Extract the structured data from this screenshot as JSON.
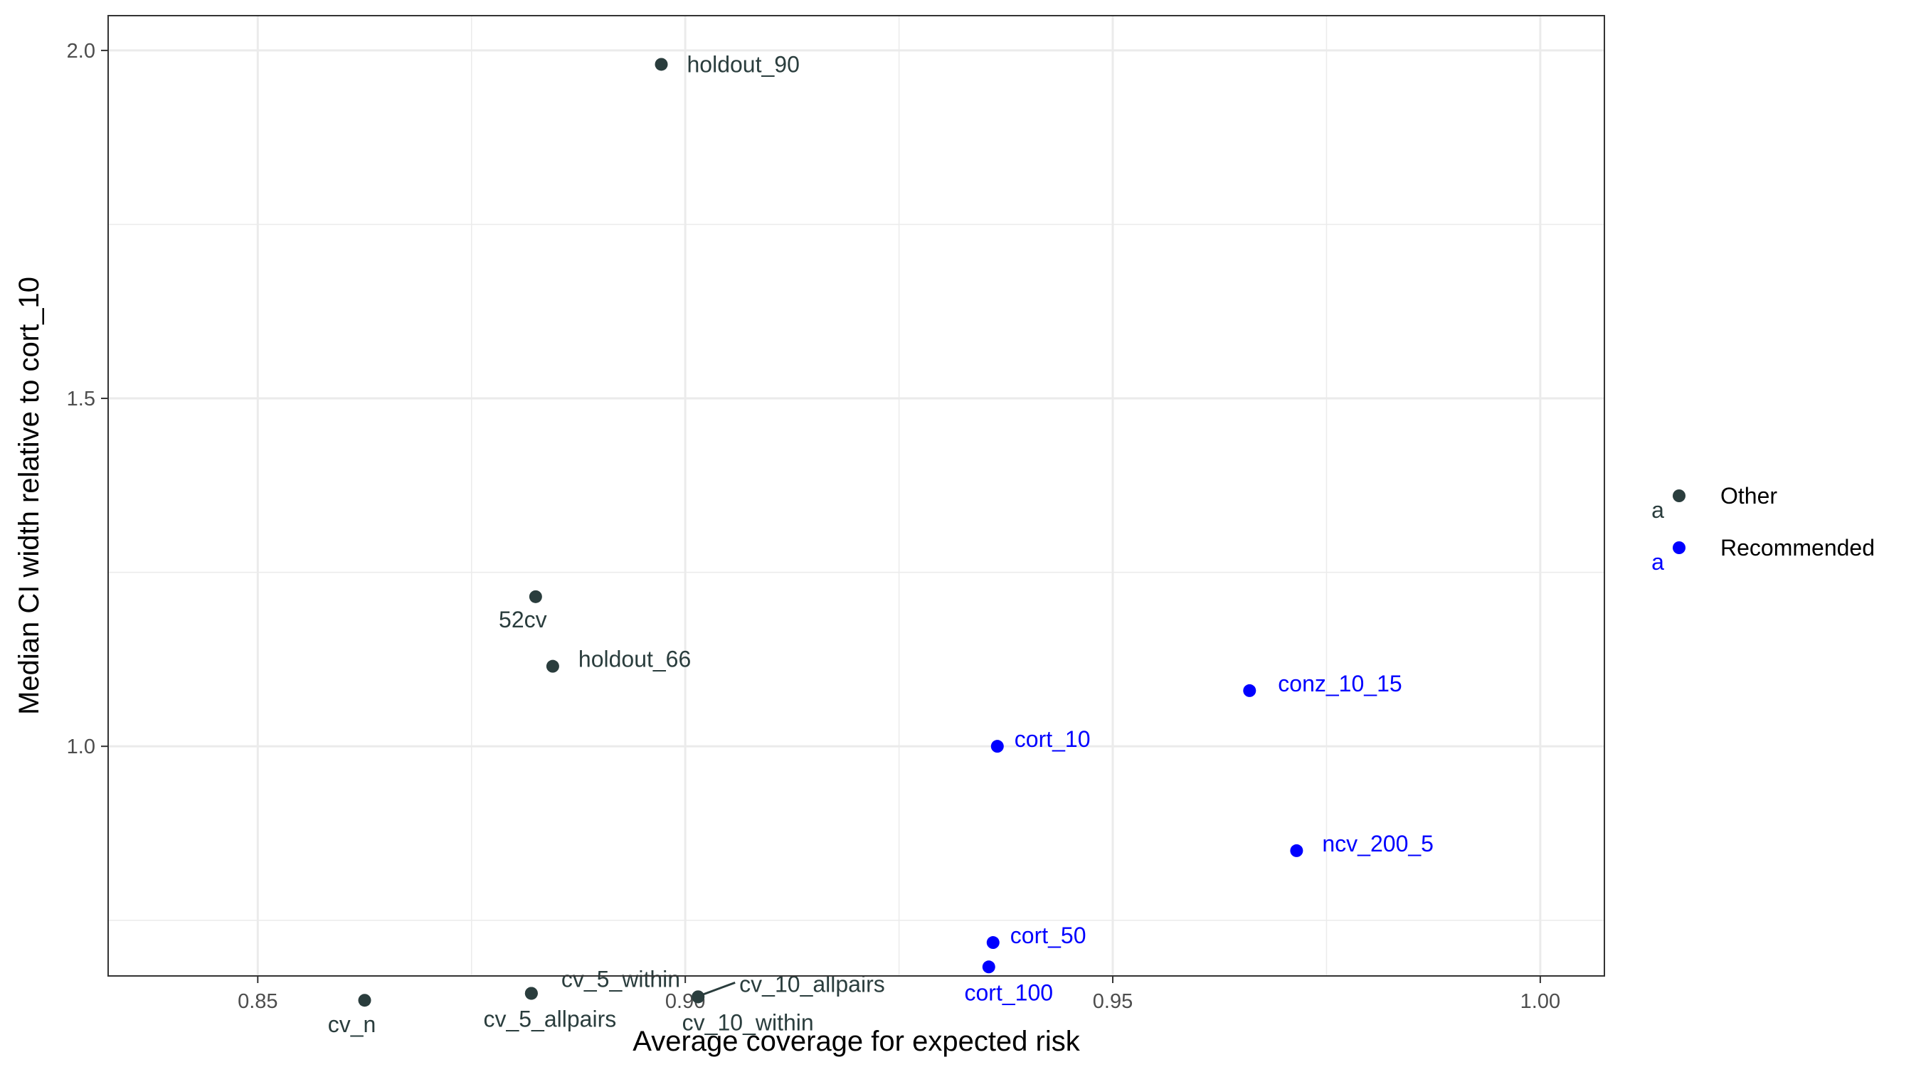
{
  "chart_data": {
    "type": "scatter",
    "xlabel": "Average coverage for expected risk",
    "ylabel": "Median CI width relative to cort_10",
    "xlim": [
      0.8325,
      0.8975
    ],
    "ylim": [
      0.67,
      2.05
    ],
    "xlim_full": [
      0.8325,
      1.0075
    ],
    "x_ticks": [
      0.85,
      0.9,
      0.95,
      1.0
    ],
    "x_tick_labels": [
      "0.85",
      "0.90",
      "0.95",
      "1.00"
    ],
    "y_ticks": [
      1.0,
      1.5,
      2.0
    ],
    "y_tick_labels": [
      "1.0",
      "1.5",
      "2.0"
    ],
    "y_minor_grid": [
      0.75,
      1.25,
      1.75
    ],
    "x_minor_grid": [
      0.875,
      0.925,
      0.975
    ],
    "grid": true,
    "legend_position": "right",
    "series": [
      {
        "name": "Other",
        "color": "#2a3d3d",
        "points": [
          {
            "x": 0.8972,
            "y": 1.98,
            "label": "holdout_90"
          },
          {
            "x": 0.8825,
            "y": 1.215,
            "label": "52cv"
          },
          {
            "x": 0.8845,
            "y": 1.115,
            "label": "holdout_66"
          },
          {
            "x": 0.8625,
            "y": 0.635,
            "label": "cv_n"
          },
          {
            "x": 0.882,
            "y": 0.645,
            "label": "cv_5_within"
          },
          {
            "x": 0.882,
            "y": 0.645,
            "label": "cv_5_allpairs"
          },
          {
            "x": 0.9015,
            "y": 0.64,
            "label": "cv_10_allpairs"
          },
          {
            "x": 0.9015,
            "y": 0.64,
            "label": "cv_10_within"
          }
        ]
      },
      {
        "name": "Recommended",
        "color": "#0000ff",
        "points": [
          {
            "x": 0.9365,
            "y": 1.0,
            "label": "cort_10"
          },
          {
            "x": 0.966,
            "y": 1.08,
            "label": "conz_10_15"
          },
          {
            "x": 0.9715,
            "y": 0.85,
            "label": "ncv_200_5"
          },
          {
            "x": 0.936,
            "y": 0.718,
            "label": "cort_50"
          },
          {
            "x": 0.9355,
            "y": 0.683,
            "label": "cort_100"
          }
        ]
      }
    ],
    "legend_key_glyph": "a"
  }
}
